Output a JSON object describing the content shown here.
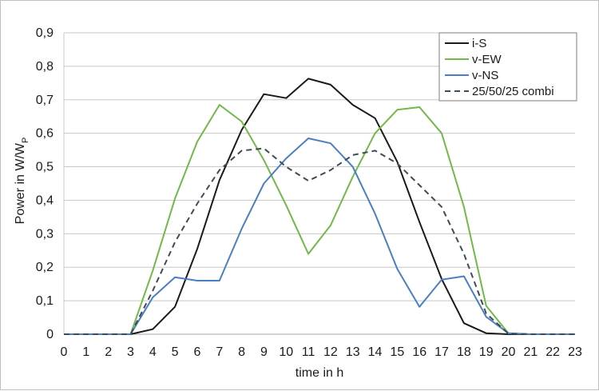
{
  "chart_data": {
    "type": "line",
    "title": "",
    "xlabel": "time in h",
    "ylabel_main": "Power in W/W",
    "ylabel_sub": "P",
    "x": [
      0,
      1,
      2,
      3,
      4,
      5,
      6,
      7,
      8,
      9,
      10,
      11,
      12,
      13,
      14,
      15,
      16,
      17,
      18,
      19,
      20,
      21,
      22,
      23
    ],
    "xlim": [
      0,
      23
    ],
    "ylim": [
      0,
      0.9
    ],
    "yticks": [
      "0",
      "0,1",
      "0,2",
      "0,3",
      "0,4",
      "0,5",
      "0,6",
      "0,7",
      "0,8",
      "0,9"
    ],
    "grid": "horizontal",
    "legend_position": "top-right",
    "series": [
      {
        "name": "i-S",
        "color": "#1a1a1a",
        "dash": "solid",
        "values": [
          0,
          0,
          0,
          0,
          0.015,
          0.082,
          0.255,
          0.46,
          0.61,
          0.717,
          0.705,
          0.763,
          0.745,
          0.685,
          0.645,
          0.515,
          0.335,
          0.165,
          0.033,
          0.003,
          0,
          0,
          0,
          0
        ]
      },
      {
        "name": "v-EW",
        "color": "#72b84a",
        "dash": "solid",
        "values": [
          0,
          0,
          0,
          0,
          0.19,
          0.405,
          0.575,
          0.685,
          0.635,
          0.52,
          0.385,
          0.24,
          0.325,
          0.47,
          0.6,
          0.67,
          0.678,
          0.6,
          0.38,
          0.085,
          0.003,
          0,
          0,
          0
        ]
      },
      {
        "name": "v-NS",
        "color": "#4a7fc1",
        "dash": "solid",
        "values": [
          0,
          0,
          0,
          0,
          0.11,
          0.17,
          0.16,
          0.16,
          0.315,
          0.45,
          0.525,
          0.585,
          0.57,
          0.5,
          0.36,
          0.195,
          0.082,
          0.163,
          0.173,
          0.052,
          0.003,
          0,
          0,
          0
        ]
      },
      {
        "name": "25/50/25 combi",
        "color": "#404b58",
        "dash": "dashed",
        "values": [
          0,
          0,
          0,
          0,
          0.13,
          0.275,
          0.39,
          0.49,
          0.548,
          0.555,
          0.5,
          0.458,
          0.49,
          0.535,
          0.548,
          0.51,
          0.445,
          0.38,
          0.24,
          0.062,
          0.002,
          0,
          0,
          0
        ]
      }
    ]
  }
}
